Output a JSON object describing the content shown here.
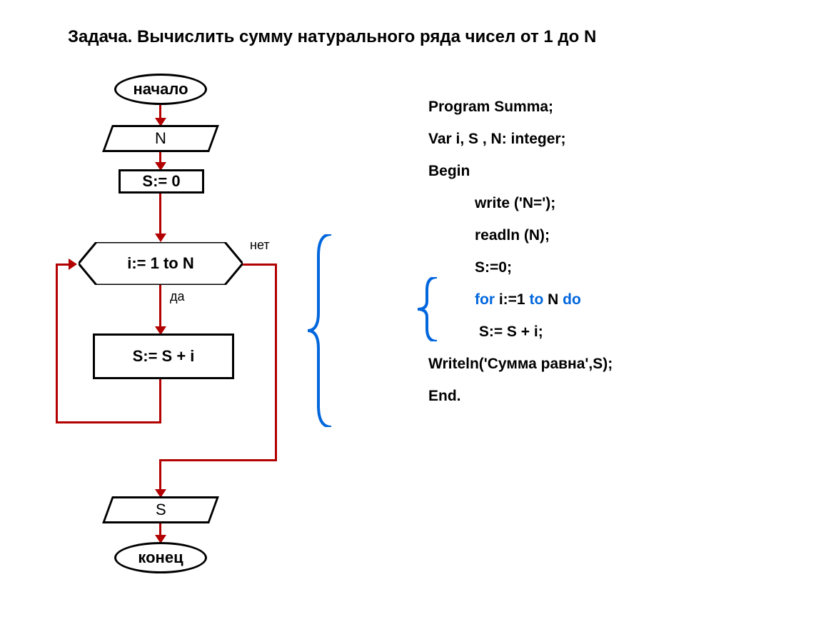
{
  "title": "Задача. Вычислить сумму натурального ряда чисел от 1 до N",
  "flowchart": {
    "start": "начало",
    "input": "N",
    "init": "S:= 0",
    "loop": "i:= 1 to N",
    "yes": "да",
    "no": "нет",
    "body": "S:= S + i",
    "output": "S",
    "end": "конец",
    "arrow_color": "#b30000",
    "border_color": "#000000",
    "brace_color": "#0066dd"
  },
  "code": {
    "lines": [
      {
        "text": "Program Summa;",
        "indent": false
      },
      {
        "text": "Var i, S , N: integer;",
        "indent": false
      },
      {
        "text": "Begin",
        "indent": false
      },
      {
        "text": "write ('N=');",
        "indent": true
      },
      {
        "text": "readln (N);",
        "indent": true
      },
      {
        "text": "S:=0;",
        "indent": true
      },
      {
        "text_parts": [
          {
            "t": "for",
            "c": "blue"
          },
          {
            "t": " i:=1 ",
            "c": "black"
          },
          {
            "t": "to",
            "c": "blue"
          },
          {
            "t": " N ",
            "c": "black"
          },
          {
            "t": "do",
            "c": "blue"
          }
        ],
        "indent": true,
        "key": "for"
      },
      {
        "text": " S:= S + i;",
        "indent": true
      },
      {
        "text": "Writeln('Сумма равна',S);",
        "indent": false
      },
      {
        "text": "End.",
        "indent": false
      }
    ]
  },
  "styling": {
    "title_fontsize": 24,
    "code_fontsize": 21,
    "node_fontsize": 22,
    "label_fontsize": 18,
    "background": "#ffffff"
  }
}
